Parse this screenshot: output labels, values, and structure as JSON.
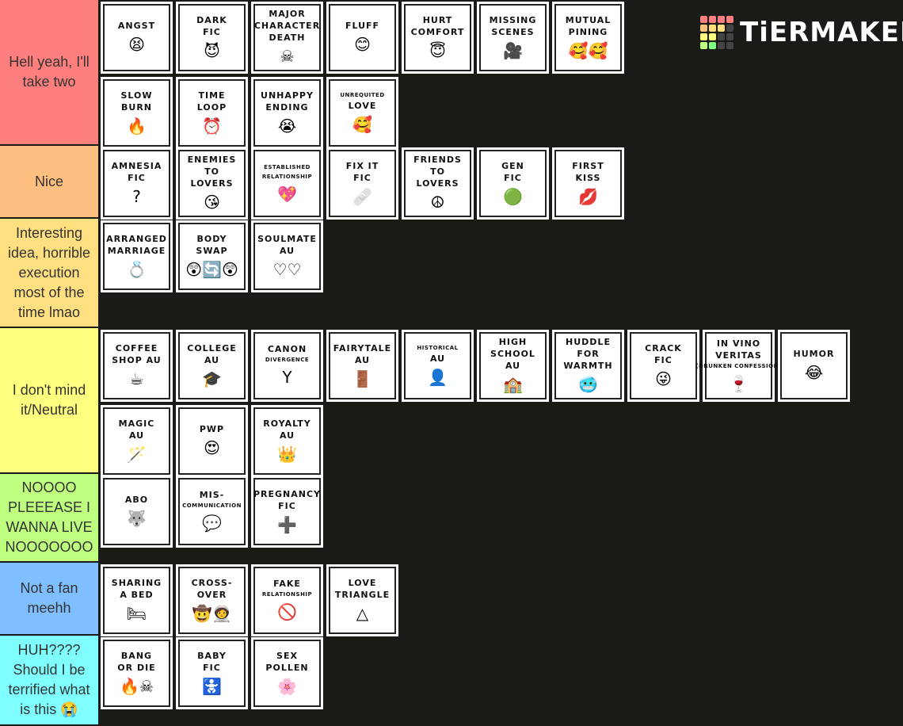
{
  "header": {
    "logo": "TiERMAKER"
  },
  "tiers": [
    {
      "label": "Hell yeah, I'll take two",
      "color": "#ff7f7f",
      "items": [
        {
          "lines": [
            "ANGST"
          ],
          "icon": "😫"
        },
        {
          "lines": [
            "DARK",
            "FIC"
          ],
          "icon": "😈"
        },
        {
          "lines": [
            "MAJOR",
            "CHARACTER",
            "DEATH"
          ],
          "icon": "☠"
        },
        {
          "lines": [
            "FLUFF"
          ],
          "icon": "😊"
        },
        {
          "lines": [
            "HURT",
            "COMFORT"
          ],
          "icon": "😇"
        },
        {
          "lines": [
            "MISSING",
            "SCENES"
          ],
          "icon": "🎥"
        },
        {
          "lines": [
            "MUTUAL",
            "PINING"
          ],
          "icon": "🥰🥰"
        },
        {
          "lines": [
            "SLOW",
            "BURN"
          ],
          "icon": "🔥"
        },
        {
          "lines": [
            "TIME",
            "LOOP"
          ],
          "icon": "⏰"
        },
        {
          "lines": [
            "UNHAPPY",
            "ENDING"
          ],
          "icon": "😭"
        },
        {
          "lines": [
            "UNREQUITED",
            "LOVE"
          ],
          "icon": "🥰"
        }
      ]
    },
    {
      "label": "Nice",
      "color": "#ffbf7f",
      "items": [
        {
          "lines": [
            "AMNESIA",
            "FIC"
          ],
          "icon": "?"
        },
        {
          "lines": [
            "ENEMIES",
            "TO",
            "LOVERS"
          ],
          "icon": "😘"
        },
        {
          "lines": [
            "ESTABLISHED",
            "RELATIONSHIP"
          ],
          "icon": "💖"
        },
        {
          "lines": [
            "FIX IT",
            "FIC"
          ],
          "icon": "🩹"
        },
        {
          "lines": [
            "FRIENDS",
            "TO",
            "LOVERS"
          ],
          "icon": "☮"
        },
        {
          "lines": [
            "GEN",
            "FIC"
          ],
          "icon": "🟢"
        },
        {
          "lines": [
            "FIRST",
            "KISS"
          ],
          "icon": "💋"
        }
      ]
    },
    {
      "label": "Interesting idea, horrible execution most of the time lmao",
      "color": "#ffdf7f",
      "items": [
        {
          "lines": [
            "ARRANGED",
            "MARRIAGE"
          ],
          "icon": "💍"
        },
        {
          "lines": [
            "BODY",
            "SWAP"
          ],
          "icon": "😲🔄😲"
        },
        {
          "lines": [
            "SOULMATE",
            "AU"
          ],
          "icon": "♡♡"
        }
      ]
    },
    {
      "label": "I don't mind it/Neutral",
      "color": "#ffff7f",
      "items": [
        {
          "lines": [
            "COFFEE",
            "SHOP AU"
          ],
          "icon": "☕"
        },
        {
          "lines": [
            "COLLEGE",
            "AU"
          ],
          "icon": "🎓"
        },
        {
          "lines": [
            "CANON",
            "DIVERGENCE"
          ],
          "icon": "Y"
        },
        {
          "lines": [
            "FAIRYTALE",
            "AU"
          ],
          "icon": "🚪"
        },
        {
          "lines": [
            "HISTORICAL",
            "AU"
          ],
          "icon": "👤"
        },
        {
          "lines": [
            "HIGH",
            "SCHOOL",
            "AU"
          ],
          "icon": "🏫"
        },
        {
          "lines": [
            "HUDDLE",
            "FOR",
            "WARMTH"
          ],
          "icon": "🥶"
        },
        {
          "lines": [
            "CRACK",
            "FIC"
          ],
          "icon": "😜"
        },
        {
          "lines": [
            "IN VINO",
            "VERITAS",
            "(DRUNKEN CONFESSION)"
          ],
          "icon": "🍷"
        },
        {
          "lines": [
            "HUMOR"
          ],
          "icon": "😂"
        },
        {
          "lines": [
            "MAGIC",
            "AU"
          ],
          "icon": "🪄"
        },
        {
          "lines": [
            "PWP"
          ],
          "icon": "😍"
        },
        {
          "lines": [
            "ROYALTY",
            "AU"
          ],
          "icon": "👑"
        }
      ]
    },
    {
      "label": "NOOOO PLEEEASE I WANNA LIVE NOOOOOOO",
      "color": "#bfff7f",
      "items": [
        {
          "lines": [
            "ABO"
          ],
          "icon": "🐺"
        },
        {
          "lines": [
            "MIS-",
            "COMMUNICATION"
          ],
          "icon": "💬"
        },
        {
          "lines": [
            "PREGNANCY",
            "FIC"
          ],
          "icon": "➕"
        }
      ]
    },
    {
      "label": "Not a fan meehh",
      "color": "#7fbfff",
      "items": [
        {
          "lines": [
            "SHARING",
            "A BED"
          ],
          "icon": "🛏"
        },
        {
          "lines": [
            "CROSS-",
            "OVER"
          ],
          "icon": "🤠🧑‍🚀"
        },
        {
          "lines": [
            "FAKE",
            "RELATIONSHIP"
          ],
          "icon": "🚫"
        },
        {
          "lines": [
            "LOVE",
            "TRIANGLE"
          ],
          "icon": "△"
        }
      ]
    },
    {
      "label": "HUH???? Should I be terrified what is this 😭",
      "color": "#7fffff",
      "items": [
        {
          "lines": [
            "BANG",
            "OR DIE"
          ],
          "icon": "🔥☠"
        },
        {
          "lines": [
            "BABY",
            "FIC"
          ],
          "icon": "🚼"
        },
        {
          "lines": [
            "SEX",
            "POLLEN"
          ],
          "icon": "🌸"
        }
      ]
    }
  ]
}
